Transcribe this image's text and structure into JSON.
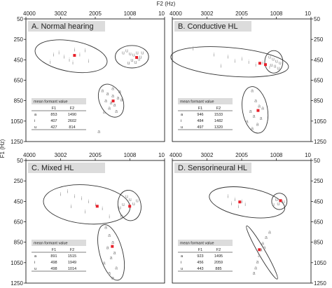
{
  "figure": {
    "top_axis_label": "F2 (Hz)",
    "left_axis_label": "F1 (Hz)"
  },
  "chart_data": [
    {
      "type": "scatter",
      "title": "A. Normal hearing",
      "x_ticks": [
        "4000",
        "3002",
        "2005",
        "1008",
        "10"
      ],
      "y_ticks": [
        "50",
        "250",
        "450",
        "650",
        "850",
        "1050",
        "1250"
      ],
      "x_scale": "reversed",
      "xlim": [
        4000,
        10
      ],
      "ylim": [
        50,
        1250
      ],
      "points": [
        {
          "v": "i",
          "f2": 3200,
          "f1": 400
        },
        {
          "v": "i",
          "f2": 3050,
          "f1": 380
        },
        {
          "v": "i",
          "f2": 2900,
          "f1": 420
        },
        {
          "v": "i",
          "f2": 2750,
          "f1": 450
        },
        {
          "v": "i",
          "f2": 2600,
          "f1": 350
        },
        {
          "v": "i",
          "f2": 2450,
          "f1": 400
        },
        {
          "v": "i",
          "f2": 2300,
          "f1": 360
        },
        {
          "v": "i",
          "f2": 2200,
          "f1": 460
        },
        {
          "v": "i",
          "f2": 3300,
          "f1": 470
        },
        {
          "v": "i",
          "f2": 2650,
          "f1": 480
        },
        {
          "v": "u",
          "f2": 1200,
          "f1": 380
        },
        {
          "v": "u",
          "f2": 1100,
          "f1": 360
        },
        {
          "v": "u",
          "f2": 1000,
          "f1": 390
        },
        {
          "v": "u",
          "f2": 900,
          "f1": 400
        },
        {
          "v": "u",
          "f2": 800,
          "f1": 380
        },
        {
          "v": "u",
          "f2": 700,
          "f1": 420
        },
        {
          "v": "u",
          "f2": 950,
          "f1": 450
        },
        {
          "v": "u",
          "f2": 850,
          "f1": 470
        },
        {
          "v": "u",
          "f2": 750,
          "f1": 440
        },
        {
          "v": "u",
          "f2": 1050,
          "f1": 480
        },
        {
          "v": "u",
          "f2": 650,
          "f1": 380
        },
        {
          "v": "a",
          "f2": 1800,
          "f1": 750
        },
        {
          "v": "a",
          "f2": 1650,
          "f1": 780
        },
        {
          "v": "a",
          "f2": 1500,
          "f1": 800
        },
        {
          "v": "a",
          "f2": 1350,
          "f1": 820
        },
        {
          "v": "a",
          "f2": 1700,
          "f1": 850
        },
        {
          "v": "a",
          "f2": 1550,
          "f1": 870
        },
        {
          "v": "a",
          "f2": 1450,
          "f1": 890
        },
        {
          "v": "a",
          "f2": 1300,
          "f1": 760
        },
        {
          "v": "a",
          "f2": 1600,
          "f1": 920
        },
        {
          "v": "a",
          "f2": 1400,
          "f1": 950
        },
        {
          "v": "a",
          "f2": 1750,
          "f1": 960
        },
        {
          "v": "a",
          "f2": 1500,
          "f1": 730
        },
        {
          "v": "a",
          "f2": 1900,
          "f1": 1150
        },
        {
          "v": "a",
          "f2": 1250,
          "f1": 840
        }
      ],
      "means": [
        {
          "v": "a",
          "f1": 853,
          "f2": 1490
        },
        {
          "v": "i",
          "f1": 407,
          "f2": 2602
        },
        {
          "v": "u",
          "f1": 427,
          "f2": 814
        }
      ],
      "ellipses": [
        {
          "v": "i",
          "cf2": 2700,
          "cf1": 415,
          "rf2": 1050,
          "rf1": 150,
          "rot": 10
        },
        {
          "v": "u",
          "cf2": 950,
          "cf1": 420,
          "rf2": 480,
          "rf1": 110,
          "rot": 0
        },
        {
          "v": "a",
          "cf2": 1550,
          "cf1": 850,
          "rf2": 330,
          "rf1": 170,
          "rot": -25
        }
      ],
      "table": {
        "title": "mean formant value",
        "headers": [
          "",
          "F1",
          "F2"
        ],
        "rows": [
          [
            "a",
            "853",
            "1490"
          ],
          [
            "i",
            "407",
            "2602"
          ],
          [
            "u",
            "427",
            "814"
          ]
        ]
      }
    },
    {
      "type": "scatter",
      "title": "B. Conductive HL",
      "x_ticks": [
        "4000",
        "3002",
        "2005",
        "1008",
        "10"
      ],
      "y_ticks": [
        "50",
        "250",
        "450",
        "650",
        "850",
        "1050",
        "1250"
      ],
      "x_scale": "reversed",
      "xlim": [
        4000,
        10
      ],
      "ylim": [
        50,
        1250
      ],
      "points": [
        {
          "v": "i",
          "f2": 3400,
          "f1": 340
        },
        {
          "v": "i",
          "f2": 2800,
          "f1": 400
        },
        {
          "v": "i",
          "f2": 2400,
          "f1": 420
        },
        {
          "v": "i",
          "f2": 2200,
          "f1": 460
        },
        {
          "v": "i",
          "f2": 2000,
          "f1": 440
        },
        {
          "v": "i",
          "f2": 1800,
          "f1": 470
        },
        {
          "v": "i",
          "f2": 1600,
          "f1": 500
        },
        {
          "v": "i",
          "f2": 1400,
          "f1": 480
        },
        {
          "v": "i",
          "f2": 1200,
          "f1": 520
        },
        {
          "v": "i",
          "f2": 2600,
          "f1": 510
        },
        {
          "v": "u",
          "f2": 1200,
          "f1": 420
        },
        {
          "v": "u",
          "f2": 1100,
          "f1": 440
        },
        {
          "v": "u",
          "f2": 1000,
          "f1": 460
        },
        {
          "v": "u",
          "f2": 900,
          "f1": 480
        },
        {
          "v": "u",
          "f2": 1050,
          "f1": 510
        },
        {
          "v": "u",
          "f2": 950,
          "f1": 530
        },
        {
          "v": "u",
          "f2": 1150,
          "f1": 500
        },
        {
          "v": "a",
          "f2": 1700,
          "f1": 750
        },
        {
          "v": "a",
          "f2": 1600,
          "f1": 850
        },
        {
          "v": "a",
          "f2": 1500,
          "f1": 900
        },
        {
          "v": "a",
          "f2": 1750,
          "f1": 950
        },
        {
          "v": "a",
          "f2": 1650,
          "f1": 1000
        },
        {
          "v": "a",
          "f2": 1450,
          "f1": 1020
        },
        {
          "v": "a",
          "f2": 1550,
          "f1": 1080
        },
        {
          "v": "a",
          "f2": 1850,
          "f1": 1050
        },
        {
          "v": "a",
          "f2": 1400,
          "f1": 920
        },
        {
          "v": "a",
          "f2": 1700,
          "f1": 1120
        }
      ],
      "means": [
        {
          "v": "a",
          "f1": 946,
          "f2": 1533
        },
        {
          "v": "i",
          "f1": 484,
          "f2": 1482
        },
        {
          "v": "u",
          "f1": 497,
          "f2": 1320
        }
      ],
      "ellipses": [
        {
          "v": "i",
          "cf2": 2350,
          "cf1": 470,
          "rf2": 1700,
          "rf1": 140,
          "rot": 5
        },
        {
          "v": "u",
          "cf2": 1080,
          "cf1": 470,
          "rf2": 260,
          "rf1": 110,
          "rot": 0
        },
        {
          "v": "a",
          "cf2": 1620,
          "cf1": 940,
          "rf2": 360,
          "rf1": 230,
          "rot": -10
        }
      ],
      "table": {
        "title": "mean formant value",
        "headers": [
          "",
          "F1",
          "F2"
        ],
        "rows": [
          [
            "a",
            "946",
            "1533"
          ],
          [
            "i",
            "484",
            "1482"
          ],
          [
            "u",
            "497",
            "1320"
          ]
        ]
      }
    },
    {
      "type": "scatter",
      "title": "C. Mixed HL",
      "x_ticks": [
        "4000",
        "3002",
        "2005",
        "1008",
        "10"
      ],
      "y_ticks": [
        "50",
        "250",
        "450",
        "650",
        "850",
        "1050",
        "1250"
      ],
      "x_scale": "reversed",
      "xlim": [
        4000,
        10
      ],
      "ylim": [
        50,
        1250
      ],
      "points": [
        {
          "v": "i",
          "f2": 3000,
          "f1": 380
        },
        {
          "v": "i",
          "f2": 2800,
          "f1": 350
        },
        {
          "v": "i",
          "f2": 2600,
          "f1": 400
        },
        {
          "v": "i",
          "f2": 2400,
          "f1": 420
        },
        {
          "v": "i",
          "f2": 2200,
          "f1": 450
        },
        {
          "v": "i",
          "f2": 2000,
          "f1": 480
        },
        {
          "v": "i",
          "f2": 1800,
          "f1": 520
        },
        {
          "v": "i",
          "f2": 2700,
          "f1": 500
        },
        {
          "v": "i",
          "f2": 2300,
          "f1": 550
        },
        {
          "v": "i",
          "f2": 1600,
          "f1": 600
        },
        {
          "v": "u",
          "f2": 1100,
          "f1": 400
        },
        {
          "v": "u",
          "f2": 1000,
          "f1": 430
        },
        {
          "v": "u",
          "f2": 900,
          "f1": 470
        },
        {
          "v": "u",
          "f2": 1200,
          "f1": 480
        },
        {
          "v": "u",
          "f2": 800,
          "f1": 440
        },
        {
          "v": "u",
          "f2": 1300,
          "f1": 510
        },
        {
          "v": "u",
          "f2": 1250,
          "f1": 590
        },
        {
          "v": "a",
          "f2": 1700,
          "f1": 700
        },
        {
          "v": "a",
          "f2": 1600,
          "f1": 780
        },
        {
          "v": "a",
          "f2": 1500,
          "f1": 850
        },
        {
          "v": "a",
          "f2": 1650,
          "f1": 900
        },
        {
          "v": "a",
          "f2": 1450,
          "f1": 950
        },
        {
          "v": "a",
          "f2": 1550,
          "f1": 1000
        },
        {
          "v": "a",
          "f2": 1750,
          "f1": 1050
        },
        {
          "v": "a",
          "f2": 1400,
          "f1": 1100
        },
        {
          "v": "a",
          "f2": 1600,
          "f1": 1150
        },
        {
          "v": "a",
          "f2": 1500,
          "f1": 1200
        }
      ],
      "means": [
        {
          "v": "a",
          "f1": 891,
          "f2": 1515
        },
        {
          "v": "i",
          "f1": 498,
          "f2": 1949
        },
        {
          "v": "u",
          "f1": 498,
          "f2": 1014
        }
      ],
      "ellipses": [
        {
          "v": "i",
          "cf2": 2250,
          "cf1": 480,
          "rf2": 1250,
          "rf1": 190,
          "rot": 5
        },
        {
          "v": "u",
          "cf2": 1020,
          "cf1": 490,
          "rf2": 330,
          "rf1": 150,
          "rot": -10
        },
        {
          "v": "a",
          "cf2": 1550,
          "cf1": 950,
          "rf2": 330,
          "rf1": 280,
          "rot": -15
        }
      ],
      "table": {
        "title": "mean formant value",
        "headers": [
          "",
          "F1",
          "F2"
        ],
        "rows": [
          [
            "a",
            "891",
            "1515"
          ],
          [
            "i",
            "498",
            "1949"
          ],
          [
            "u",
            "498",
            "1014"
          ]
        ]
      }
    },
    {
      "type": "scatter",
      "title": "D. Sensorineural HL",
      "x_ticks": [
        "4000",
        "3002",
        "2005",
        "1008",
        "10"
      ],
      "y_ticks": [
        "50",
        "250",
        "450",
        "650",
        "850",
        "1050",
        "1250"
      ],
      "x_scale": "reversed",
      "xlim": [
        4000,
        10
      ],
      "ylim": [
        50,
        1250
      ],
      "points": [
        {
          "v": "i",
          "f2": 2400,
          "f1": 400
        },
        {
          "v": "i",
          "f2": 2200,
          "f1": 430
        },
        {
          "v": "i",
          "f2": 2000,
          "f1": 450
        },
        {
          "v": "i",
          "f2": 1900,
          "f1": 480
        },
        {
          "v": "i",
          "f2": 2100,
          "f1": 500
        },
        {
          "v": "i",
          "f2": 2300,
          "f1": 470
        },
        {
          "v": "u",
          "f2": 1000,
          "f1": 430
        },
        {
          "v": "u",
          "f2": 900,
          "f1": 440
        },
        {
          "v": "u",
          "f2": 800,
          "f1": 450
        },
        {
          "v": "u",
          "f2": 950,
          "f1": 470
        },
        {
          "v": "u",
          "f2": 1100,
          "f1": 480
        },
        {
          "v": "a",
          "f2": 1200,
          "f1": 750
        },
        {
          "v": "a",
          "f2": 1300,
          "f1": 800
        },
        {
          "v": "a",
          "f2": 1400,
          "f1": 860
        },
        {
          "v": "a",
          "f2": 1450,
          "f1": 920
        },
        {
          "v": "a",
          "f2": 1500,
          "f1": 980
        },
        {
          "v": "a",
          "f2": 1550,
          "f1": 1040
        },
        {
          "v": "a",
          "f2": 1600,
          "f1": 1100
        },
        {
          "v": "a",
          "f2": 1650,
          "f1": 1150
        },
        {
          "v": "a",
          "f2": 1350,
          "f1": 900
        }
      ],
      "means": [
        {
          "v": "a",
          "f1": 923,
          "f2": 1495
        },
        {
          "v": "i",
          "f1": 456,
          "f2": 2059
        },
        {
          "v": "u",
          "f1": 443,
          "f2": 885
        }
      ],
      "ellipses": [
        {
          "v": "i",
          "cf2": 1850,
          "cf1": 460,
          "rf2": 1100,
          "rf1": 140,
          "rot": 10
        },
        {
          "v": "u",
          "cf2": 920,
          "cf1": 450,
          "rf2": 220,
          "rf1": 80,
          "rot": 0
        },
        {
          "v": "a",
          "cf2": 1420,
          "cf1": 950,
          "rf2": 100,
          "rf1": 300,
          "rot": -30
        }
      ],
      "table": {
        "title": "mean formant value",
        "headers": [
          "",
          "F1",
          "F2"
        ],
        "rows": [
          [
            "a",
            "923",
            "1495"
          ],
          [
            "i",
            "456",
            "2059"
          ],
          [
            "u",
            "443",
            "885"
          ]
        ]
      }
    }
  ]
}
